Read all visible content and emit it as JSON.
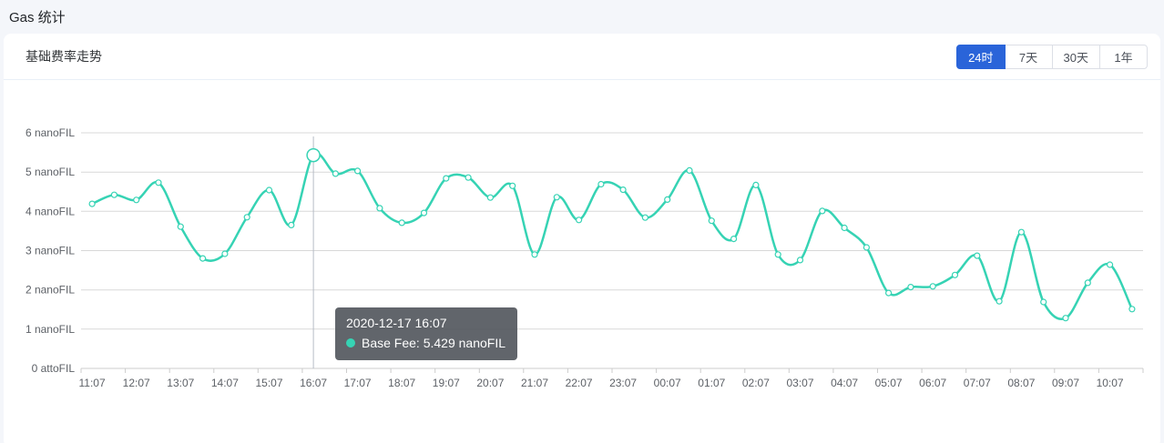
{
  "header": {
    "title": "Gas 统计"
  },
  "card": {
    "section_title": "基础费率走势",
    "range_buttons": [
      {
        "label": "24时",
        "active": true
      },
      {
        "label": "7天",
        "active": false
      },
      {
        "label": "30天",
        "active": false
      },
      {
        "label": "1年",
        "active": false
      }
    ]
  },
  "tooltip": {
    "datetime": "2020-12-17 16:07",
    "series_label": "Base Fee",
    "value": "5.429",
    "unit": "nanoFIL",
    "text": "Base Fee: 5.429 nanoFIL"
  },
  "colors": {
    "accent_blue": "#2a64d9",
    "line_teal": "#36d3b4",
    "gridline": "#d8d8d8",
    "axis_line": "#cccccc",
    "axis_pointer": "#b6bcc6",
    "tooltip_bg": "rgba(84,88,94,0.92)"
  },
  "chart_data": {
    "type": "line",
    "title": "基础费率走势",
    "xlabel": "",
    "ylabel": "Base Fee",
    "grid": true,
    "legend_position": "none",
    "ylim": [
      0,
      6
    ],
    "y_axis_labels": [
      "0 attoFIL",
      "1 nanoFIL",
      "2 nanoFIL",
      "3 nanoFIL",
      "4 nanoFIL",
      "5 nanoFIL",
      "6 nanoFIL"
    ],
    "x": [
      "11:07",
      "11:37",
      "12:07",
      "12:37",
      "13:07",
      "13:37",
      "14:07",
      "14:37",
      "15:07",
      "15:37",
      "16:07",
      "16:37",
      "17:07",
      "17:37",
      "18:07",
      "18:37",
      "19:07",
      "19:37",
      "20:07",
      "20:37",
      "21:07",
      "21:37",
      "22:07",
      "22:37",
      "23:07",
      "23:37",
      "00:07",
      "00:37",
      "01:07",
      "01:37",
      "02:07",
      "02:37",
      "03:07",
      "03:37",
      "04:07",
      "04:37",
      "05:07",
      "05:37",
      "06:07",
      "06:37",
      "07:07",
      "07:37",
      "08:07",
      "08:37",
      "09:07",
      "09:37",
      "10:07",
      "10:37"
    ],
    "x_tick_labels": [
      "11:07",
      "12:07",
      "13:07",
      "14:07",
      "15:07",
      "16:07",
      "17:07",
      "18:07",
      "19:07",
      "20:07",
      "21:07",
      "22:07",
      "23:07",
      "00:07",
      "01:07",
      "02:07",
      "03:07",
      "04:07",
      "05:07",
      "06:07",
      "07:07",
      "08:07",
      "09:07",
      "10:07"
    ],
    "series": [
      {
        "name": "Base Fee",
        "unit": "nanoFIL",
        "values": [
          4.19,
          4.42,
          4.29,
          4.73,
          3.61,
          2.8,
          2.92,
          3.85,
          4.54,
          3.65,
          5.429,
          4.96,
          5.03,
          4.08,
          3.71,
          3.96,
          4.84,
          4.86,
          4.35,
          4.65,
          2.9,
          4.36,
          3.78,
          4.69,
          4.55,
          3.84,
          4.3,
          5.04,
          3.76,
          3.3,
          4.67,
          2.9,
          2.76,
          4.01,
          3.58,
          3.08,
          1.92,
          2.07,
          2.09,
          2.38,
          2.87,
          1.71,
          3.47,
          1.69,
          1.28,
          2.18,
          2.64,
          1.51
        ]
      }
    ],
    "highlight_index": 10,
    "highlight_label": "2020-12-17 16:07"
  }
}
